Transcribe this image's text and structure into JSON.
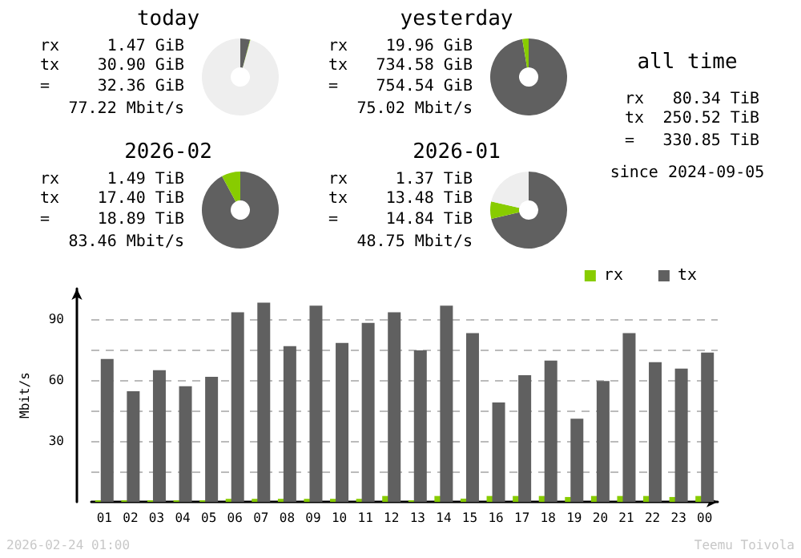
{
  "chart_data": [
    {
      "type": "donut",
      "title": "today",
      "categories": [
        null,
        null,
        null
      ],
      "values": [
        4.095,
        0.195,
        95.71
      ],
      "colors": [
        "#606060",
        "#88cc00",
        "#eeeeee"
      ],
      "annotations": [
        "rx",
        "1.47 GiB",
        "tx",
        "30.90 GiB",
        "=",
        "32.36 GiB",
        "77.22 Mbit/s"
      ]
    },
    {
      "type": "donut",
      "title": "yesterday",
      "categories": [
        null,
        null
      ],
      "values": [
        97.355,
        2.645
      ],
      "colors": [
        "#606060",
        "#88cc00"
      ],
      "annotations": [
        "rx",
        "19.96 GiB",
        "tx",
        "734.58 GiB",
        "=",
        "754.54 GiB",
        "75.02 Mbit/s"
      ]
    },
    {
      "type": "donut",
      "title": "2026-02",
      "categories": [
        null,
        null
      ],
      "values": [
        92.11,
        7.89
      ],
      "colors": [
        "#606060",
        "#88cc00"
      ],
      "annotations": [
        "rx",
        "1.49 TiB",
        "tx",
        "17.40 TiB",
        "=",
        "18.89 TiB",
        "83.46 Mbit/s"
      ]
    },
    {
      "type": "donut",
      "title": "2026-01",
      "categories": [
        null,
        null,
        null
      ],
      "values": [
        71.36,
        7.25,
        21.39
      ],
      "colors": [
        "#606060",
        "#88cc00",
        "#eeeeee"
      ],
      "annotations": [
        "rx",
        "1.37 TiB",
        "tx",
        "13.48 TiB",
        "=",
        "14.84 TiB",
        "48.75 Mbit/s"
      ]
    },
    {
      "type": "other",
      "title": "all time",
      "annotations": [
        "rx",
        "80.34 TiB",
        "tx",
        "250.52 TiB",
        "=",
        "330.85 TiB",
        "since 2024-09-05"
      ]
    },
    {
      "type": "bar",
      "ylabel": "Mbit/s",
      "categories": [
        "01",
        "02",
        "03",
        "04",
        "05",
        "06",
        "07",
        "08",
        "09",
        "10",
        "11",
        "12",
        "13",
        "14",
        "15",
        "16",
        "17",
        "18",
        "19",
        "20",
        "21",
        "22",
        "23",
        "00"
      ],
      "series": [
        {
          "name": "rx",
          "color": "#88cc00",
          "values": [
            0.8,
            0.8,
            0.8,
            0.8,
            0.8,
            1.5,
            1.5,
            1.5,
            1.5,
            1.5,
            1.5,
            2.9,
            0.8,
            2.9,
            1.6,
            2.9,
            2.9,
            2.9,
            2.4,
            2.9,
            2.9,
            2.9,
            2.4,
            2.9
          ]
        },
        {
          "name": "tx",
          "color": "#606060",
          "values": [
            70.4,
            54.5,
            64.8,
            56.9,
            61.6,
            93.4,
            98.1,
            76.7,
            96.6,
            78.3,
            88.1,
            93.4,
            74.6,
            96.6,
            83.1,
            48.9,
            62.4,
            69.6,
            41.0,
            59.5,
            83.1,
            68.8,
            65.6,
            73.5
          ]
        }
      ],
      "ylim": [
        0,
        105
      ],
      "yticks": [
        {
          "value": 15,
          "label": null
        },
        30,
        {
          "value": 45,
          "label": null
        },
        60,
        {
          "value": 75,
          "label": null
        },
        90
      ],
      "grid": "y",
      "legend": "top right",
      "annotations": [
        "2026-02-24 01:00",
        "Teemu Toivola"
      ]
    }
  ]
}
